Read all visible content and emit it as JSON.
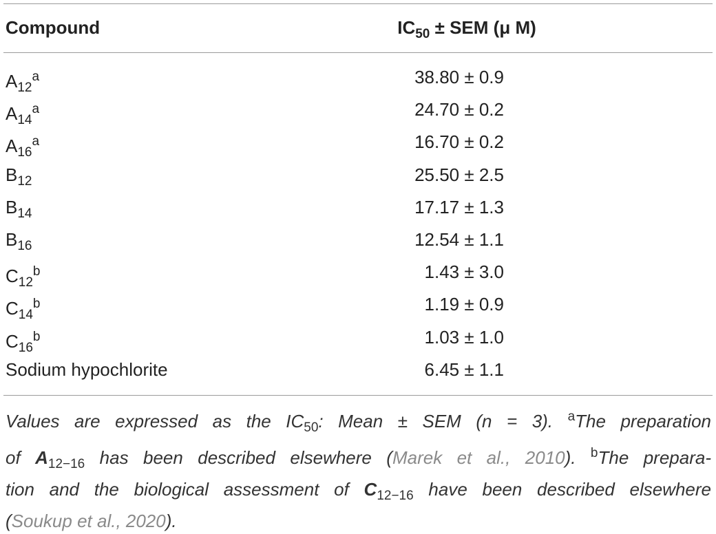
{
  "table": {
    "headers": {
      "compound": "Compound",
      "ic50_prefix": "IC",
      "ic50_sub": "50",
      "ic50_suffix": " ± SEM (μ M)"
    },
    "rows": [
      {
        "base": "A",
        "sub": "12",
        "sup": "a",
        "value": "38.80 ± 0.9"
      },
      {
        "base": "A",
        "sub": "14",
        "sup": "a",
        "value": "24.70 ± 0.2"
      },
      {
        "base": "A",
        "sub": "16",
        "sup": "a",
        "value": "16.70 ± 0.2"
      },
      {
        "base": "B",
        "sub": "12",
        "sup": "",
        "value": "25.50 ± 2.5"
      },
      {
        "base": "B",
        "sub": "14",
        "sup": "",
        "value": "17.17 ± 1.3"
      },
      {
        "base": "B",
        "sub": "16",
        "sup": "",
        "value": "12.54 ± 1.1"
      },
      {
        "base": "C",
        "sub": "12",
        "sup": "b",
        "value": "1.43 ± 3.0"
      },
      {
        "base": "C",
        "sub": "14",
        "sup": "b",
        "value": "1.19 ± 0.9"
      },
      {
        "base": "C",
        "sub": "16",
        "sup": "b",
        "value": "1.03 ± 1.0"
      },
      {
        "base": "Sodium hypochlorite",
        "sub": "",
        "sup": "",
        "value": "6.45 ± 1.1"
      }
    ]
  },
  "footnote": {
    "l1_pre": "Values are expressed as the IC",
    "l1_sub": "50",
    "l1_mid": ": Mean ± SEM (n = 3). ",
    "l1_sup": "a",
    "l1_post": "The preparation",
    "l2_pre": "of ",
    "l2_bold": "A",
    "l2_sub": "12−16",
    "l2_mid": " has been described elsewhere (",
    "l2_ref": "Marek et al., 2010",
    "l2_close": "). ",
    "l2_sup": "b",
    "l2_post": "The prepara-",
    "l3_pre": "tion and the biological assessment of ",
    "l3_bold": "C",
    "l3_sub": "12−16",
    "l3_post": " have been described elsewhere",
    "l4_open": "(",
    "l4_ref": "Soukup et al., 2020",
    "l4_close": ")."
  }
}
